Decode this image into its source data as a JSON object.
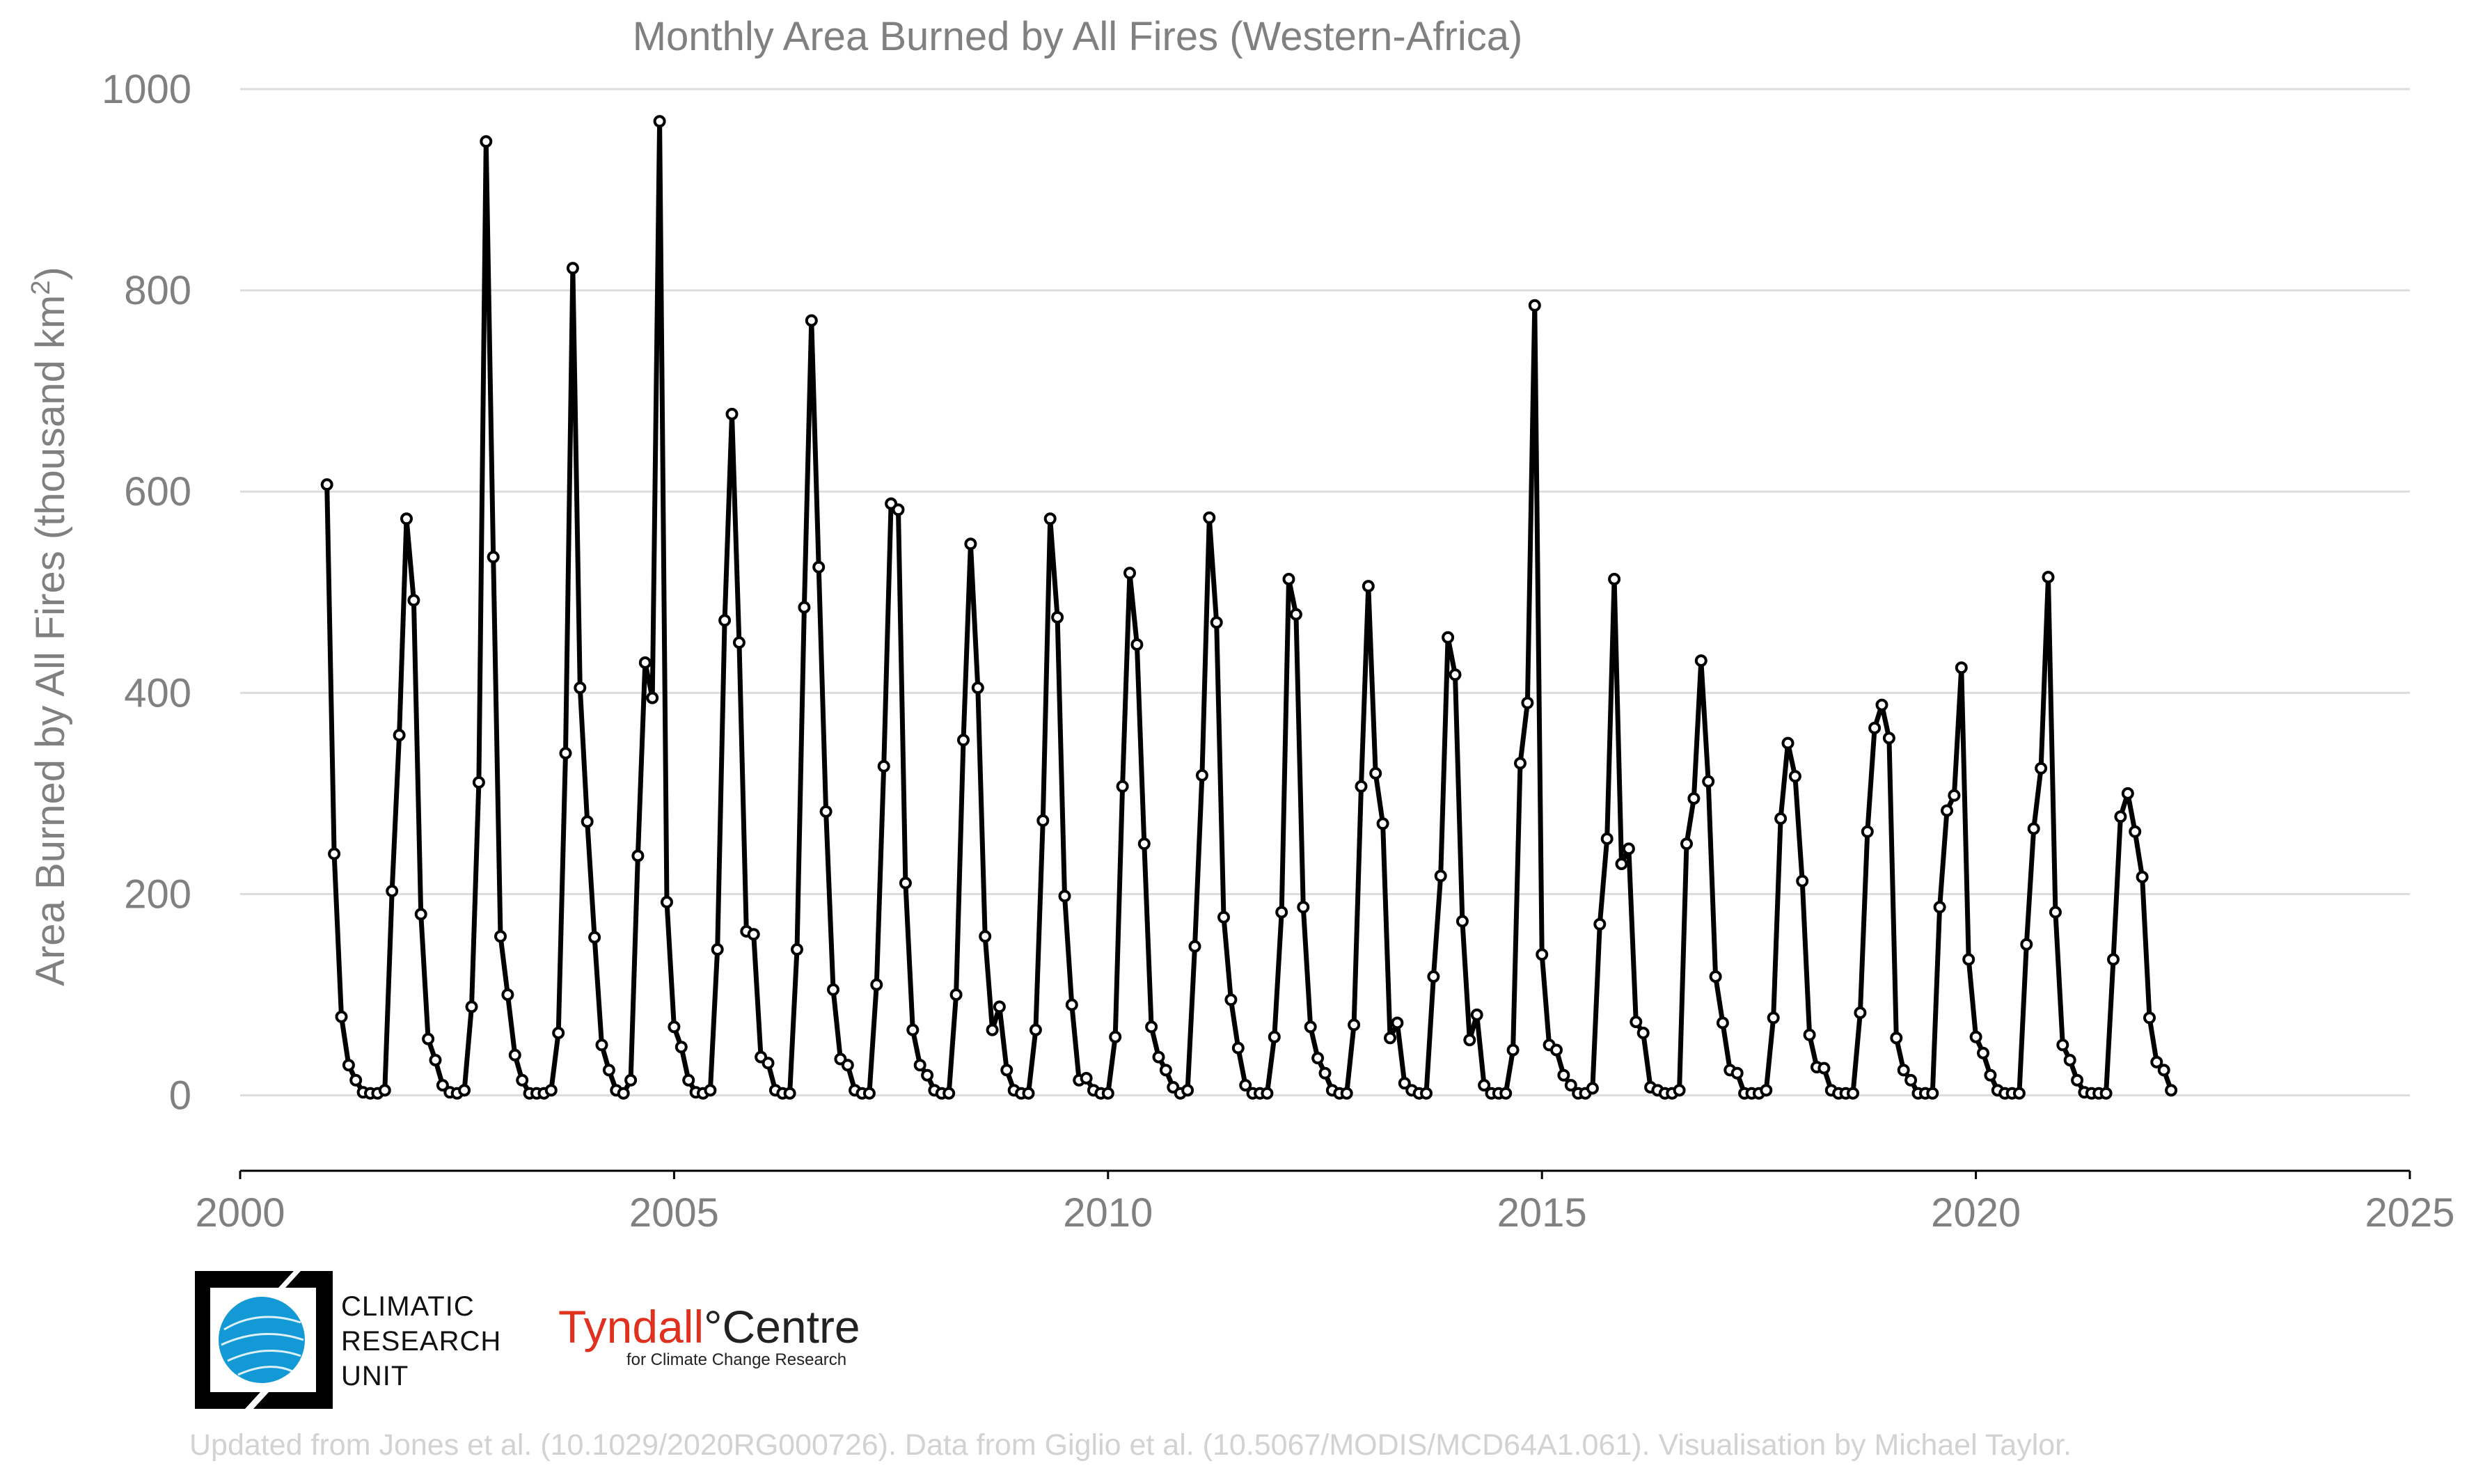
{
  "chart_data": {
    "type": "line",
    "title": "Monthly Area Burned by All Fires (Western-Africa)",
    "ylabel_main": "Area Burned by All Fires (thousand km",
    "ylabel_sup": "2",
    "ylabel_tail": ")",
    "xlabel": "",
    "xlim": [
      2000,
      2025
    ],
    "ylim": [
      -75,
      1000
    ],
    "xticks": [
      2000,
      2005,
      2010,
      2015,
      2020,
      2025
    ],
    "yticks": [
      0,
      200,
      400,
      600,
      800,
      1000
    ],
    "grid": "horizontal",
    "start_date": "2001-01",
    "values": [
      607,
      240,
      78,
      30,
      15,
      3,
      2,
      2,
      5,
      203,
      358,
      573,
      492,
      180,
      56,
      35,
      10,
      3,
      2,
      5,
      88,
      311,
      948,
      535,
      158,
      100,
      40,
      15,
      2,
      2,
      2,
      5,
      62,
      340,
      822,
      405,
      272,
      157,
      50,
      25,
      5,
      2,
      15,
      238,
      430,
      395,
      968,
      192,
      68,
      48,
      15,
      3,
      2,
      5,
      145,
      472,
      677,
      450,
      163,
      160,
      38,
      32,
      5,
      2,
      2,
      145,
      485,
      770,
      525,
      282,
      105,
      36,
      30,
      5,
      2,
      2,
      110,
      327,
      588,
      582,
      211,
      65,
      30,
      20,
      5,
      2,
      2,
      100,
      353,
      548,
      405,
      158,
      65,
      88,
      25,
      5,
      2,
      2,
      65,
      273,
      573,
      475,
      198,
      90,
      15,
      17,
      5,
      2,
      2,
      58,
      307,
      519,
      448,
      250,
      68,
      38,
      25,
      8,
      2,
      5,
      148,
      318,
      574,
      470,
      177,
      95,
      47,
      10,
      2,
      2,
      2,
      58,
      182,
      513,
      478,
      187,
      68,
      37,
      22,
      5,
      2,
      2,
      70,
      307,
      506,
      320,
      270,
      57,
      72,
      12,
      5,
      2,
      2,
      118,
      218,
      455,
      418,
      173,
      55,
      80,
      10,
      2,
      2,
      2,
      45,
      330,
      390,
      785,
      140,
      50,
      45,
      20,
      10,
      2,
      2,
      7,
      170,
      255,
      513,
      230,
      245,
      73,
      62,
      8,
      5,
      2,
      2,
      5,
      250,
      295,
      432,
      312,
      118,
      72,
      25,
      22,
      2,
      2,
      2,
      5,
      77,
      275,
      350,
      317,
      213,
      60,
      28,
      27,
      5,
      2,
      2,
      2,
      82,
      262,
      365,
      388,
      355,
      57,
      25,
      15,
      2,
      2,
      2,
      187,
      283,
      298,
      425,
      135,
      58,
      42,
      20,
      5,
      2,
      2,
      2,
      150,
      265,
      325,
      515,
      182,
      50,
      35,
      15,
      3,
      2,
      2,
      2,
      135,
      277,
      300,
      262,
      217,
      77,
      33,
      25,
      5
    ]
  },
  "logos": {
    "cru_lines": [
      "CLIMATIC",
      "RESEARCH",
      "UNIT"
    ],
    "tyndall_name": "Tyndall",
    "tyndall_degree": "°",
    "tyndall_centre": "Centre",
    "tyndall_sub": "for Climate Change Research"
  },
  "footer": "Updated from Jones et al. (10.1029/2020RG000726). Data from Giglio et al. (10.5067/MODIS/MCD64A1.061). Visualisation by Michael Taylor.",
  "colors": {
    "line": "#000000",
    "grid": "#dddddd",
    "text": "#808080",
    "cru_blue": "#139ad6",
    "tyndall_red": "#e0301e",
    "footer": "#d2d2d2"
  }
}
